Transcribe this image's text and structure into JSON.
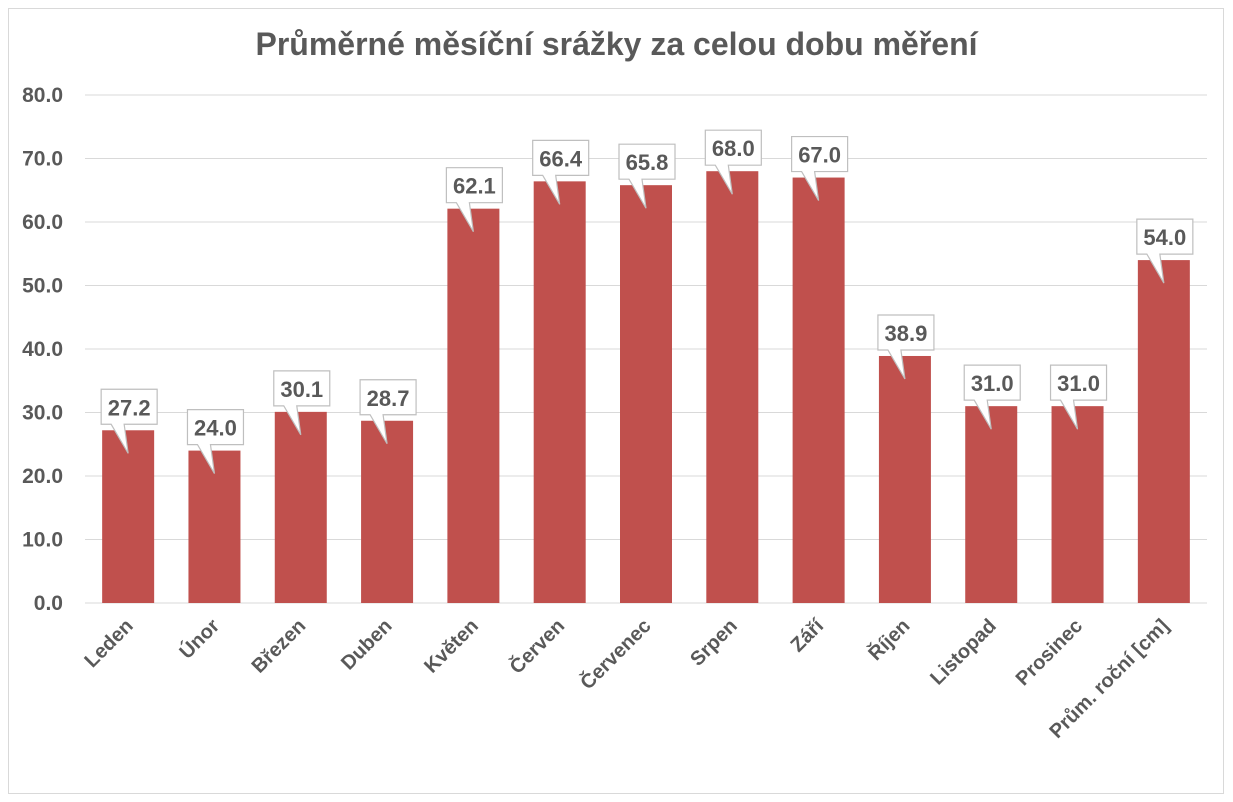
{
  "chart_data": {
    "type": "bar",
    "title": "Průměrné měsíční srážky za celou dobu měření",
    "xlabel": "",
    "ylabel": "",
    "ylim": [
      0,
      80
    ],
    "ytick_step": 10,
    "yticks": [
      "0.0",
      "10.0",
      "20.0",
      "30.0",
      "40.0",
      "50.0",
      "60.0",
      "70.0",
      "80.0"
    ],
    "grid": true,
    "categories": [
      "Leden",
      "Únor",
      "Březen",
      "Duben",
      "Květen",
      "Červen",
      "Červenec",
      "Srpen",
      "Září",
      "Říjen",
      "Listopad",
      "Prosinec",
      "Prům. roční [cm]"
    ],
    "values": [
      27.2,
      24.0,
      30.1,
      28.7,
      62.1,
      66.4,
      65.8,
      68.0,
      67.0,
      38.9,
      31.0,
      31.0,
      54.0
    ],
    "data_labels": [
      "27.2",
      "24.0",
      "30.1",
      "28.7",
      "62.1",
      "66.4",
      "65.8",
      "68.0",
      "67.0",
      "38.9",
      "31.0",
      "31.0",
      "54.0"
    ],
    "bar_color": "#C0504D"
  }
}
